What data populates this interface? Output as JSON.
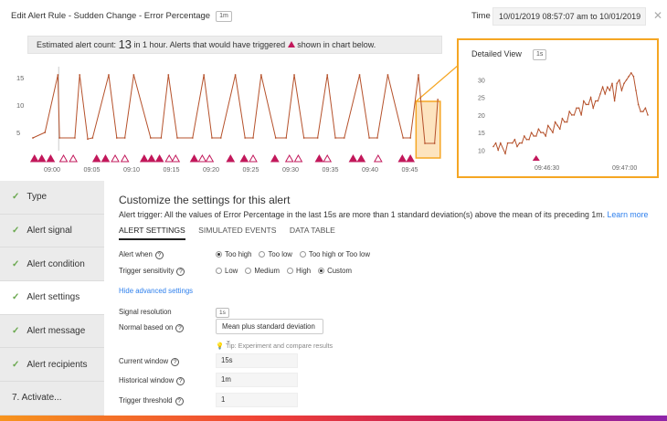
{
  "header": {
    "title": "Edit Alert Rule - Sudden Change - Error Percentage",
    "badge": "1m",
    "time_label": "Time",
    "time_value": "10/01/2019 08:57:07 am to 10/01/2019",
    "close_icon": "close-icon"
  },
  "estimate": {
    "prefix": "Estimated alert count:",
    "count": "13",
    "middle": "in 1 hour. Alerts that would have triggered",
    "suffix": "shown in chart below."
  },
  "colors": {
    "line": "#b5512b",
    "alert": "#c2185b",
    "highlight": "#f5a623",
    "link": "#2f80ed",
    "check": "#6aa84f"
  },
  "chart_data": [
    {
      "type": "line",
      "x_ticks": [
        "09:00",
        "09:05",
        "09:10",
        "09:15",
        "09:20",
        "09:25",
        "09:30",
        "09:35",
        "09:40",
        "09:45"
      ],
      "y_ticks": [
        "5",
        "10",
        "15"
      ],
      "ylim": [
        2,
        17
      ],
      "series": [
        {
          "x": [
            0,
            1.5,
            3.1,
            3.3,
            5.2,
            5.8,
            6.8,
            7.4,
            9.4,
            10.4,
            11.4,
            12.5,
            14.6,
            15.9,
            16.8,
            17.9,
            19.8,
            21.2,
            22.2,
            23.3,
            25.1,
            26.3,
            27.3,
            28.3,
            30.1,
            31.4,
            32.4,
            33.6,
            35.3,
            36.5,
            37.5,
            38.6,
            40.5,
            41.7,
            42.7,
            44.0,
            45.9,
            46.8,
            47.8,
            48.6,
            49.8,
            50.2
          ],
          "y": [
            4,
            5,
            15.5,
            4,
            4,
            15.5,
            3.8,
            4,
            15.5,
            4,
            4,
            15.5,
            4,
            4,
            15.5,
            4,
            4,
            15.5,
            4,
            4,
            15.5,
            4,
            4,
            15.5,
            4,
            4,
            15.5,
            4,
            4,
            15.5,
            4,
            4,
            15.5,
            4,
            4,
            15.5,
            4,
            4,
            15.5,
            3,
            3,
            11
          ]
        }
      ],
      "alerts": [
        {
          "x": 0.2,
          "filled": true
        },
        {
          "x": 1.1,
          "filled": true
        },
        {
          "x": 2.2,
          "filled": true
        },
        {
          "x": 3.8,
          "filled": false
        },
        {
          "x": 5.0,
          "filled": false
        },
        {
          "x": 7.9,
          "filled": true
        },
        {
          "x": 9.0,
          "filled": true
        },
        {
          "x": 10.2,
          "filled": false
        },
        {
          "x": 11.4,
          "filled": false
        },
        {
          "x": 13.8,
          "filled": true
        },
        {
          "x": 14.7,
          "filled": true
        },
        {
          "x": 15.7,
          "filled": true
        },
        {
          "x": 16.9,
          "filled": false
        },
        {
          "x": 17.7,
          "filled": false
        },
        {
          "x": 20.0,
          "filled": true
        },
        {
          "x": 21.0,
          "filled": false
        },
        {
          "x": 21.9,
          "filled": false
        },
        {
          "x": 24.5,
          "filled": true
        },
        {
          "x": 26.2,
          "filled": true
        },
        {
          "x": 27.3,
          "filled": false
        },
        {
          "x": 30.0,
          "filled": true
        },
        {
          "x": 31.8,
          "filled": false
        },
        {
          "x": 32.9,
          "filled": false
        },
        {
          "x": 35.5,
          "filled": true
        },
        {
          "x": 36.5,
          "filled": false
        },
        {
          "x": 39.7,
          "filled": true
        },
        {
          "x": 40.7,
          "filled": true
        },
        {
          "x": 42.8,
          "filled": false
        },
        {
          "x": 45.8,
          "filled": true
        },
        {
          "x": 46.8,
          "filled": true
        }
      ],
      "highlight_x": [
        47.5,
        50.5
      ],
      "xlim": [
        0,
        51.2
      ]
    },
    {
      "type": "line",
      "title": "Detailed View",
      "badge": "1s",
      "x_ticks": [
        "09:46:30",
        "09:47:00"
      ],
      "y_ticks": [
        "10",
        "15",
        "20",
        "25",
        "30"
      ],
      "ylim": [
        8,
        33
      ],
      "series": [
        {
          "x": [
            0,
            1,
            2,
            3,
            5,
            6,
            8,
            9,
            10,
            11,
            12,
            13,
            14,
            15,
            16,
            17,
            18,
            19,
            20,
            21,
            22,
            23,
            24,
            25,
            26,
            27,
            28,
            29,
            30,
            31,
            32,
            33,
            34,
            35,
            36,
            37,
            38,
            39,
            40,
            41,
            42,
            43,
            44,
            45,
            46,
            47,
            48,
            49,
            50,
            51,
            52,
            53,
            54,
            55,
            56,
            57,
            58,
            59,
            60,
            61,
            62,
            63,
            64,
            65
          ],
          "y": [
            11,
            12,
            10,
            12,
            9,
            12,
            12,
            13,
            11,
            12,
            12,
            14,
            13,
            13,
            15,
            14,
            14,
            16,
            15,
            15,
            14,
            17,
            16,
            15,
            18,
            17,
            16,
            19,
            18,
            18,
            21,
            20,
            20,
            22,
            22,
            20,
            24,
            23,
            23,
            25,
            22,
            24,
            24,
            26,
            28,
            26,
            28,
            27,
            29,
            24,
            29,
            30,
            27,
            29,
            30,
            31,
            32,
            31,
            27,
            23,
            21,
            21,
            22,
            20
          ],
          "name": ""
        }
      ],
      "alerts": [
        {
          "x": 18,
          "filled": true
        }
      ],
      "xlim": [
        0,
        65
      ]
    }
  ],
  "sidebar": {
    "items": [
      {
        "label": "Type",
        "check": true
      },
      {
        "label": "Alert signal",
        "check": true
      },
      {
        "label": "Alert condition",
        "check": true
      },
      {
        "label": "Alert settings",
        "check": true
      },
      {
        "label": "Alert message",
        "check": true
      },
      {
        "label": "Alert recipients",
        "check": true
      },
      {
        "label": "7.  Activate...",
        "check": false
      }
    ]
  },
  "panel": {
    "title": "Customize the settings for this alert",
    "trigger_text": "Alert trigger: All the values of Error Percentage in the last 15s are more than 1 standard deviation(s) above the mean of its preceding 1m.",
    "learn_more": "Learn more",
    "tabs": [
      "ALERT SETTINGS",
      "SIMULATED EVENTS",
      "DATA TABLE"
    ],
    "alert_when": {
      "label": "Alert when",
      "options": [
        "Too high",
        "Too low",
        "Too high or Too low"
      ],
      "selected": 0
    },
    "sensitivity": {
      "label": "Trigger sensitivity",
      "options": [
        "Low",
        "Medium",
        "High",
        "Custom"
      ],
      "selected": 3
    },
    "hide_advanced": "Hide advanced settings",
    "signal_resolution": {
      "label": "Signal resolution",
      "value": "1s"
    },
    "normal_based_on": {
      "label": "Normal based on",
      "value": "Mean plus standard deviation"
    },
    "tip": "Tip: Experiment and compare results",
    "current_window": {
      "label": "Current window",
      "value": "15s"
    },
    "historical_window": {
      "label": "Historical window",
      "value": "1m"
    },
    "trigger_threshold": {
      "label": "Trigger threshold",
      "value": "1"
    }
  }
}
